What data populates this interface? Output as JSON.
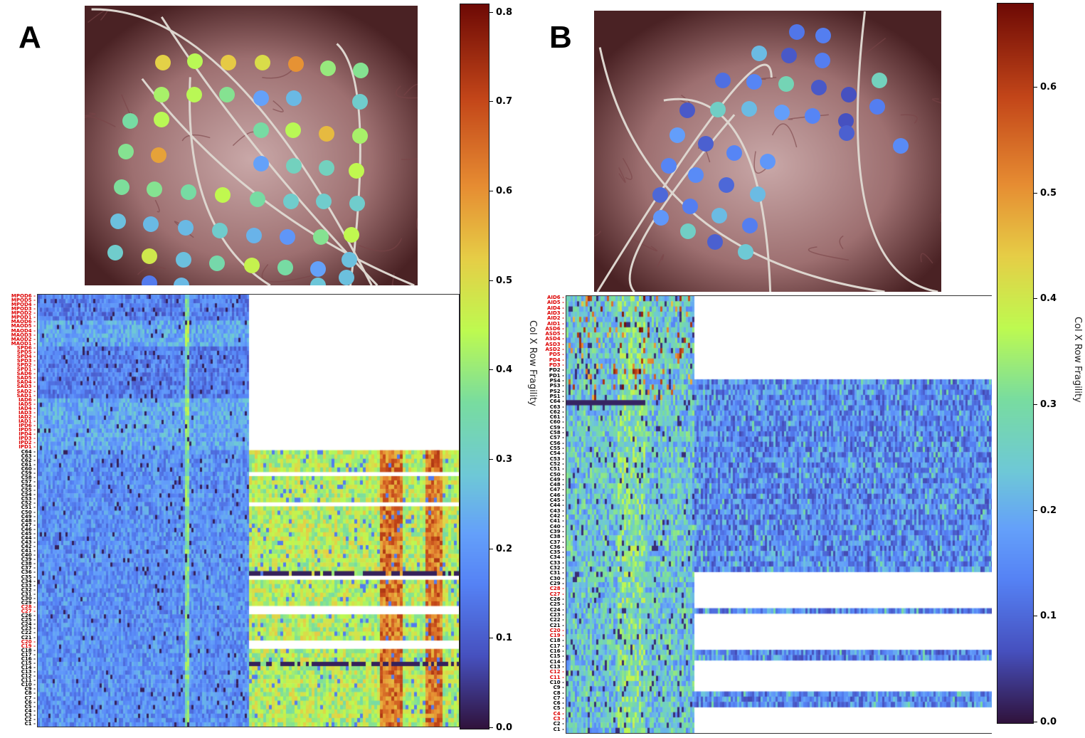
{
  "chart_data": [
    {
      "type": "heatmap",
      "panel_label": "A",
      "colorbar": {
        "label": "Col X Row Fragility",
        "range": [
          0.0,
          0.81
        ],
        "ticks": [
          "0.0",
          "0.1",
          "0.2",
          "0.3",
          "0.4",
          "0.5",
          "0.6",
          "0.7",
          "0.8"
        ],
        "colormap": "turbo-like"
      },
      "row_labels": [
        "MPOD6",
        "MPOD5",
        "MPOD4",
        "MPOD3",
        "MPOD2",
        "MPOD1",
        "MAOD6",
        "MAOD5",
        "MAOD4",
        "MAOD3",
        "MAOD2",
        "MAOD1",
        "SPD6",
        "SPD5",
        "SPD4",
        "SPD3",
        "SPD2",
        "SPD1",
        "SAD6",
        "SAD5",
        "SAD4",
        "SAD3",
        "SAD2",
        "SAD1",
        "IAD6",
        "IAD5",
        "IAD4",
        "IAD3",
        "IAD2",
        "IAD1",
        "IPD6",
        "IPD5",
        "IPD4",
        "IPD3",
        "IPD2",
        "IPD1",
        "C64",
        "C63",
        "C62",
        "C61",
        "C60",
        "C59",
        "C58",
        "C57",
        "C56",
        "C55",
        "C54",
        "C53",
        "C52",
        "C51",
        "C50",
        "C49",
        "C48",
        "C47",
        "C46",
        "C45",
        "C44",
        "C43",
        "C42",
        "C41",
        "C40",
        "C39",
        "C38",
        "C37",
        "C36",
        "C35",
        "C34",
        "C33",
        "C32",
        "C31",
        "C30",
        "C29",
        "C28",
        "C27",
        "C26",
        "C25",
        "C24",
        "C23",
        "C22",
        "C21",
        "C20",
        "C19",
        "C18",
        "C17",
        "C16",
        "C15",
        "C14",
        "C13",
        "C12",
        "C11",
        "C10",
        "C9",
        "C8",
        "C7",
        "C6",
        "C5",
        "C4",
        "C3",
        "C2",
        "C1"
      ],
      "red_labels": [
        "MPOD6",
        "MPOD5",
        "MPOD4",
        "MPOD3",
        "MPOD2",
        "MPOD1",
        "MAOD6",
        "MAOD5",
        "MAOD4",
        "MAOD3",
        "MAOD2",
        "MAOD1",
        "SPD6",
        "SPD5",
        "SPD4",
        "SPD3",
        "SPD2",
        "SPD1",
        "SAD6",
        "SAD5",
        "SAD4",
        "SAD3",
        "SAD2",
        "SAD1",
        "IAD6",
        "IAD5",
        "IAD4",
        "IAD3",
        "IAD2",
        "IAD1",
        "IPD6",
        "IPD5",
        "IPD4",
        "IPD3",
        "IPD2",
        "IPD1",
        "C28",
        "C27",
        "C20",
        "C19"
      ],
      "blank_rows_right": [
        "C59",
        "C52",
        "C35",
        "C28",
        "C27",
        "C20",
        "C19"
      ],
      "dark_rows_right": [
        "C36",
        "C15"
      ],
      "description": "Left block: pre-recording fragility (mostly low, 0.05-0.3). Right block (grid C channels only): high fragility 0.3-0.75 with vertical hot bands.",
      "photo_electrode_colors": "mostly green/yellow (0.3-0.55) with a few orange (~0.6) and blue (~0.2) dots"
    },
    {
      "type": "heatmap",
      "panel_label": "B",
      "colorbar": {
        "label": "Col X Row Fragility",
        "range": [
          0.0,
          0.68
        ],
        "ticks": [
          "0.0",
          "0.1",
          "0.2",
          "0.3",
          "0.4",
          "0.5",
          "0.6"
        ],
        "colormap": "turbo-like"
      },
      "row_labels": [
        "AID6",
        "AID5",
        "AID4",
        "AID3",
        "AID2",
        "AID1",
        "ASD6",
        "ASD5",
        "ASD4",
        "ASD3",
        "ASD2",
        "PD5",
        "PD4",
        "PD3",
        "PD2",
        "PD1",
        "PS4",
        "PS3",
        "PS2",
        "PS1",
        "C64",
        "C63",
        "C62",
        "C61",
        "C60",
        "C59",
        "C58",
        "C57",
        "C56",
        "C55",
        "C54",
        "C53",
        "C52",
        "C51",
        "C50",
        "C49",
        "C48",
        "C47",
        "C46",
        "C45",
        "C44",
        "C43",
        "C42",
        "C41",
        "C40",
        "C39",
        "C38",
        "C37",
        "C36",
        "C35",
        "C34",
        "C33",
        "C32",
        "C31",
        "C30",
        "C29",
        "C28",
        "C27",
        "C26",
        "C25",
        "C24",
        "C23",
        "C22",
        "C21",
        "C20",
        "C19",
        "C18",
        "C17",
        "C16",
        "C15",
        "C14",
        "C13",
        "C12",
        "C11",
        "C10",
        "C9",
        "C8",
        "C7",
        "C6",
        "C5",
        "C4",
        "C3",
        "C2",
        "C1"
      ],
      "red_labels": [
        "AID6",
        "AID5",
        "AID4",
        "AID3",
        "AID2",
        "AID1",
        "ASD6",
        "ASD5",
        "ASD4",
        "ASD3",
        "ASD2",
        "PD5",
        "PD4",
        "PD3",
        "C28",
        "C27",
        "C20",
        "C19",
        "C12",
        "C11",
        "C4",
        "C3"
      ],
      "right_present_rows": [
        "PS4",
        "PS3",
        "PS2",
        "PS1",
        "C64",
        "C63",
        "C62",
        "C61",
        "C60",
        "C59",
        "C58",
        "C57",
        "C56",
        "C55",
        "C54",
        "C53",
        "C52",
        "C51",
        "C50",
        "C49",
        "C48",
        "C47",
        "C46",
        "C45",
        "C44",
        "C43",
        "C42",
        "C41",
        "C40",
        "C39",
        "C38",
        "C37",
        "C36",
        "C35",
        "C34",
        "C33",
        "C32",
        "C24",
        "C16",
        "C15",
        "C8",
        "C7",
        "C6"
      ],
      "dark_rows_left": [
        "C64"
      ],
      "description": "Left block: fragility 0.05-0.4, with some 0.5-0.6 hotspots in depth channels. Right block: low fragility 0.05-0.25.",
      "photo_electrode_colors": "mostly blue (0.08-0.2) with a few teal/green (~0.25-0.3) dots"
    }
  ]
}
